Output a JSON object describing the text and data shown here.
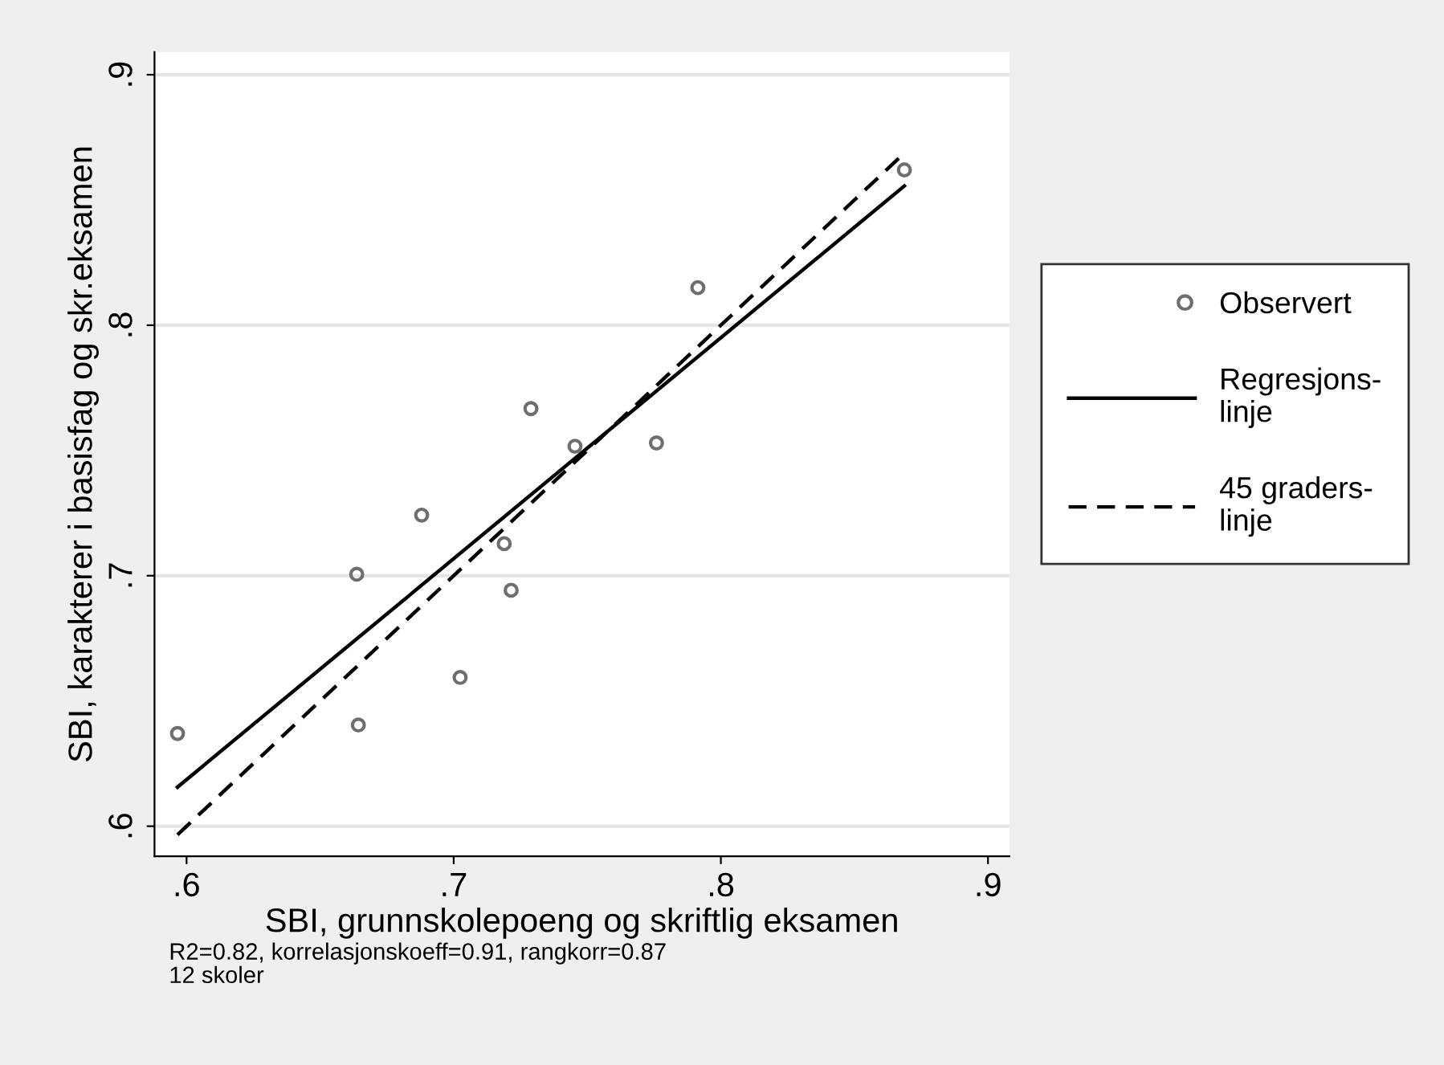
{
  "chart_data": {
    "type": "scatter",
    "xlabel": "SBI, grunnskolepoeng og skriftlig eksamen",
    "ylabel": "SBI, karakterer i basisfag og skr.eksamen",
    "xlim": [
      0.588,
      0.908
    ],
    "ylim": [
      0.588,
      0.909
    ],
    "xticks": [
      {
        "value": 0.6,
        "label": ".6"
      },
      {
        "value": 0.7,
        "label": ".7"
      },
      {
        "value": 0.8,
        "label": ".8"
      },
      {
        "value": 0.9,
        "label": ".9"
      }
    ],
    "yticks": [
      {
        "value": 0.6,
        "label": ".6"
      },
      {
        "value": 0.7,
        "label": ".7"
      },
      {
        "value": 0.8,
        "label": ".8"
      },
      {
        "value": 0.9,
        "label": ".9"
      }
    ],
    "grid": "y",
    "legend": "right",
    "series": [
      {
        "name": "Observert",
        "marker": "circle",
        "color": "#6e6e6e",
        "x": [
          0.5966,
          0.6637,
          0.6643,
          0.688,
          0.7024,
          0.7189,
          0.7215,
          0.7289,
          0.7454,
          0.7759,
          0.7914,
          0.8687
        ],
        "values": [
          0.637,
          0.7006,
          0.6404,
          0.7242,
          0.6594,
          0.7128,
          0.6942,
          0.7667,
          0.7517,
          0.753,
          0.815,
          0.862
        ]
      },
      {
        "name": "Regresjons-\nlinje",
        "type": "line",
        "line_style": "solid",
        "color": "#000000",
        "x": [
          0.5966,
          0.8687
        ],
        "values": [
          0.6156,
          0.8556
        ]
      },
      {
        "name": "45 graders-\nlinje",
        "type": "line",
        "line_style": "dashed",
        "color": "#000000",
        "x": [
          0.5966,
          0.8687
        ],
        "values": [
          0.5966,
          0.8687
        ]
      }
    ],
    "annotations": [
      "R2=0.82, korrelasjonskoeff=0.91, rangkorr=0.87",
      "12 skoler"
    ]
  }
}
